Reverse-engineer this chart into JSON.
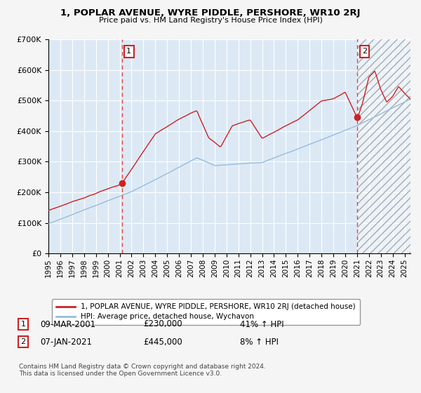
{
  "title": "1, POPLAR AVENUE, WYRE PIDDLE, PERSHORE, WR10 2RJ",
  "subtitle": "Price paid vs. HM Land Registry's House Price Index (HPI)",
  "legend_line1": "1, POPLAR AVENUE, WYRE PIDDLE, PERSHORE, WR10 2RJ (detached house)",
  "legend_line2": "HPI: Average price, detached house, Wychavon",
  "sale1_label": "1",
  "sale1_date": "09-MAR-2001",
  "sale1_price": "£230,000",
  "sale1_hpi": "41% ↑ HPI",
  "sale2_label": "2",
  "sale2_date": "07-JAN-2021",
  "sale2_price": "£445,000",
  "sale2_hpi": "8% ↑ HPI",
  "footer": "Contains HM Land Registry data © Crown copyright and database right 2024.\nThis data is licensed under the Open Government Licence v3.0.",
  "fig_bg_color": "#f5f5f5",
  "plot_bg_color": "#dce9f5",
  "red_line_color": "#cc2222",
  "blue_line_color": "#99bbdd",
  "grid_color": "#ffffff",
  "vline_color": "#dd4444",
  "ylim": [
    0,
    700000
  ],
  "xlim_start": 1995.0,
  "xlim_end": 2025.5,
  "sale1_x": 2001.18,
  "sale1_y": 230000,
  "sale2_x": 2021.03,
  "sale2_y": 445000
}
